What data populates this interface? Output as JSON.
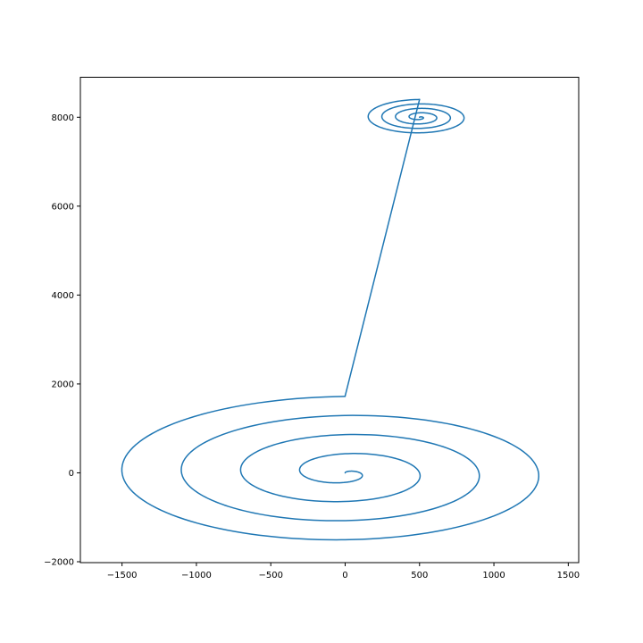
{
  "chart_data": {
    "type": "line",
    "title": "",
    "xlabel": "",
    "ylabel": "",
    "xlim": [
      -1780,
      1570
    ],
    "ylim": [
      -2020,
      8900
    ],
    "grid": false,
    "color": "#1f77b4",
    "x_ticks": [
      -1500,
      -1000,
      -500,
      0,
      500,
      1000,
      1500
    ],
    "x_tick_labels": [
      "−1500",
      "−1000",
      "−500",
      "0",
      "500",
      "1000",
      "1500"
    ],
    "y_ticks": [
      -2000,
      0,
      2000,
      4000,
      6000,
      8000
    ],
    "y_tick_labels": [
      "−2000",
      "0",
      "2000",
      "4000",
      "6000",
      "8000"
    ],
    "series": [
      {
        "segments": [
          {
            "kind": "spiral",
            "center": [
              0,
              0
            ],
            "turns": 4,
            "x_step": 400,
            "y_step": 430,
            "phase": 0,
            "clockwise": true,
            "end": [
              0,
              1730
            ]
          },
          {
            "kind": "line",
            "start": [
              0,
              1730
            ],
            "end": [
              500,
              8400
            ]
          },
          {
            "kind": "spiral",
            "center": [
              500,
              8000
            ],
            "turns": 4,
            "x_step": 92,
            "y_step": 100,
            "phase": 0,
            "clockwise": true,
            "end": [
              500,
              8400
            ]
          }
        ]
      }
    ]
  }
}
